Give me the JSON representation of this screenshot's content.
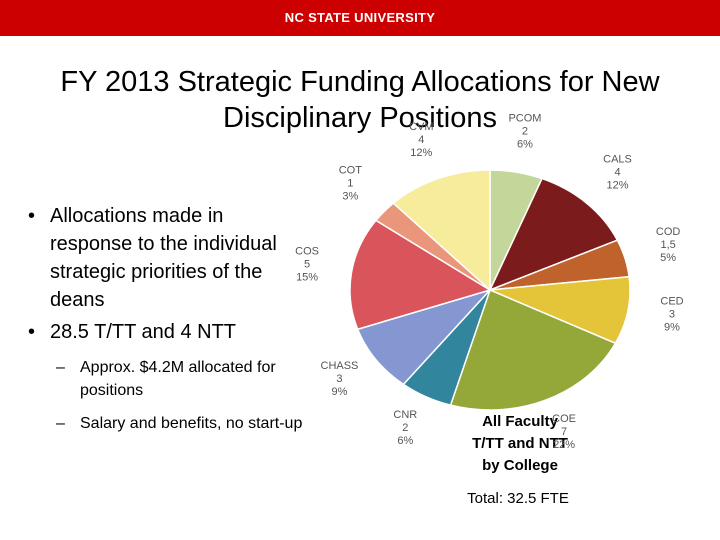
{
  "header": "NC STATE UNIVERSITY",
  "title": "FY 2013 Strategic Funding Allocations for New Disciplinary Positions",
  "bullets": [
    "Allocations made in response to the individual strategic priorities of the deans",
    "28.5 T/TT and 4 NTT"
  ],
  "sub_bullets": [
    "Approx. $4.2M allocated for positions",
    "Salary and benefits, no start-up"
  ],
  "chart_data": {
    "type": "pie",
    "annotation": "All Faculty T/TT and NTT by College",
    "total_label": "Total: 32.5 FTE",
    "categories": [
      "PCOM",
      "CALS",
      "COD",
      "CED",
      "COE",
      "CNR",
      "CHASS",
      "COS",
      "COT",
      "CVM"
    ],
    "count_labels": [
      "2",
      "4",
      "1,5",
      "3",
      "7",
      "2",
      "3",
      "5",
      "1",
      "4"
    ],
    "values": [
      6,
      12,
      5,
      9,
      22,
      6,
      9,
      15,
      3,
      12
    ],
    "value_labels": [
      "6%",
      "12%",
      "5%",
      "9%",
      "22%",
      "6%",
      "9%",
      "15%",
      "3%",
      "12%"
    ],
    "colors": [
      "#c4d79b",
      "#7b1b1b",
      "#c0622b",
      "#e4c53a",
      "#94a83a",
      "#31859c",
      "#8497d0",
      "#d9545b",
      "#e9967a",
      "#f7ec9b"
    ]
  }
}
